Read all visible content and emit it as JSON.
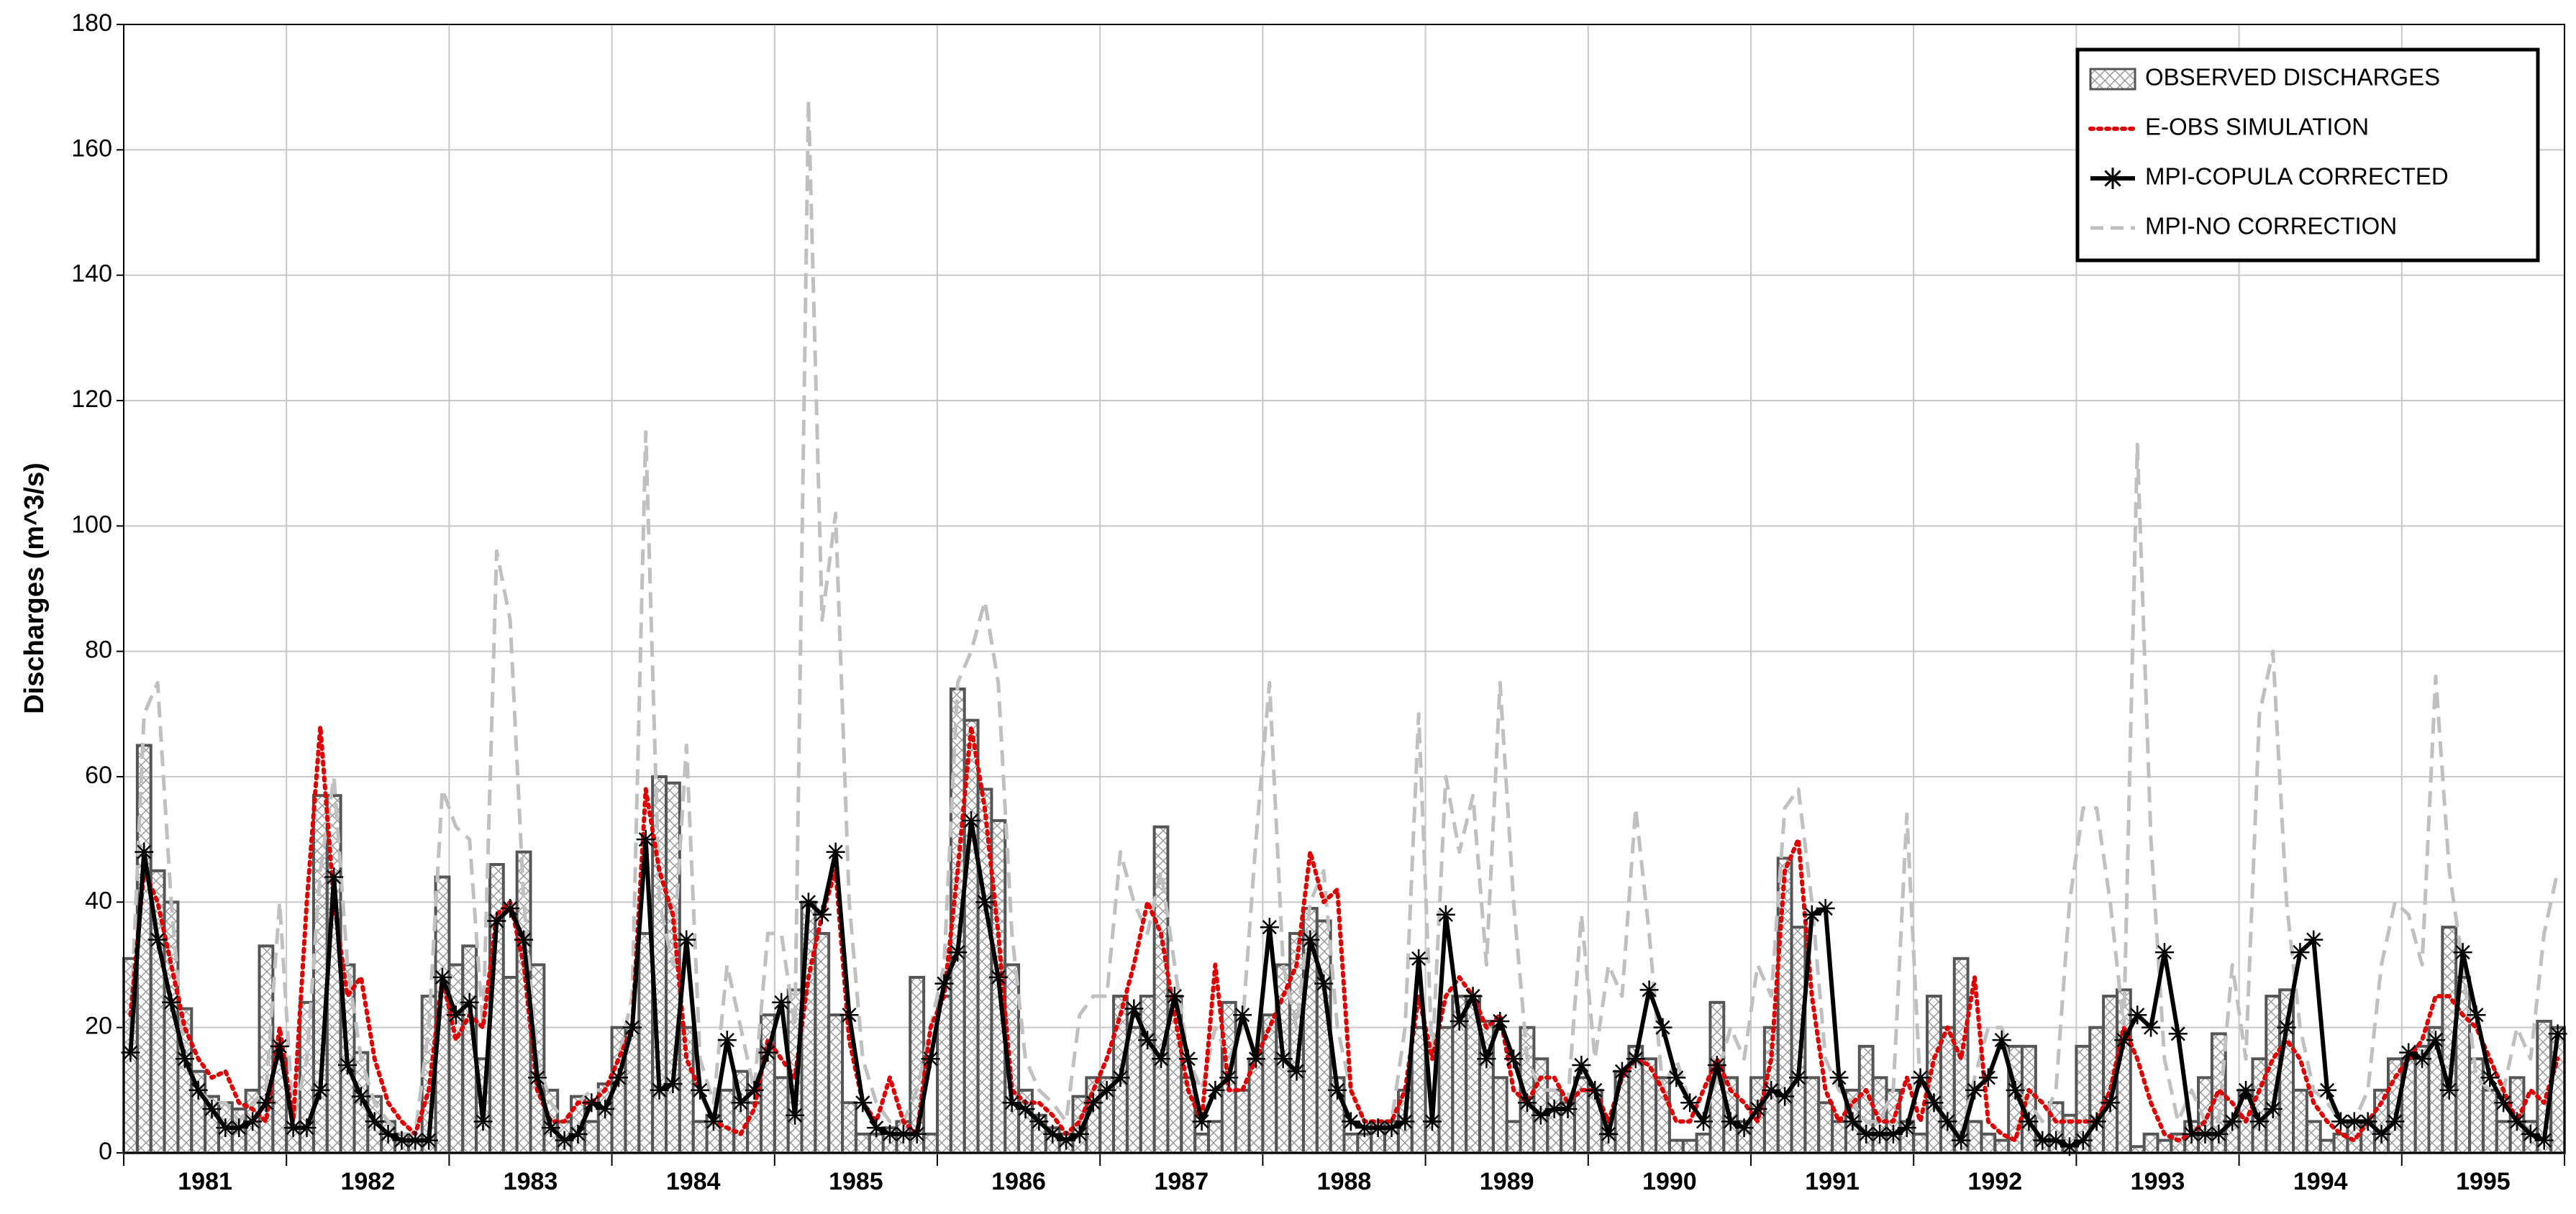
{
  "chart_data": {
    "type": "line",
    "y_label": "Discharges (m^3/s)",
    "categories": [
      "1981",
      "1982",
      "1983",
      "1984",
      "1985",
      "1986",
      "1987",
      "1988",
      "1989",
      "1990",
      "1991",
      "1992",
      "1993",
      "1994",
      "1995"
    ],
    "ylim": [
      0,
      180
    ],
    "yticks": [
      0,
      20,
      40,
      60,
      80,
      100,
      120,
      140,
      160,
      180
    ],
    "grid": true,
    "legend": "upper right",
    "series": [
      {
        "name": "OBSERVED DISCHARGES",
        "color": "#555555",
        "style": "step-hatched",
        "values": [
          [
            31,
            65,
            45,
            40,
            23,
            13,
            9,
            8,
            7,
            10,
            33,
            15
          ],
          [
            4,
            24,
            57,
            57,
            30,
            16,
            9,
            5,
            3,
            2,
            25,
            44
          ],
          [
            30,
            33,
            15,
            46,
            28,
            48,
            30,
            10,
            5,
            9,
            5,
            11
          ],
          [
            20,
            20,
            35,
            60,
            59,
            20,
            5,
            6,
            10,
            13,
            8,
            22
          ],
          [
            12,
            26,
            40,
            35,
            22,
            8,
            3,
            3,
            4,
            5,
            28,
            3
          ],
          [
            25,
            74,
            69,
            58,
            53,
            30,
            10,
            6,
            4,
            3,
            9,
            12
          ],
          [
            12,
            25,
            20,
            25,
            52,
            25,
            12,
            3,
            5,
            24,
            10,
            15
          ],
          [
            22,
            30,
            35,
            39,
            37,
            12,
            3,
            3,
            5,
            5,
            10,
            20
          ],
          [
            5,
            20,
            25,
            25,
            21,
            12,
            5,
            20,
            15,
            10,
            8,
            12
          ],
          [
            10,
            3,
            13,
            17,
            15,
            12,
            2,
            2,
            3,
            24,
            12,
            5
          ],
          [
            12,
            20,
            47,
            36,
            12,
            8,
            5,
            10,
            17,
            12,
            10,
            5
          ],
          [
            3,
            25,
            20,
            31,
            5,
            3,
            2,
            17,
            17,
            2,
            8,
            6
          ],
          [
            17,
            20,
            25,
            26,
            1,
            3,
            2,
            3,
            5,
            12,
            19,
            5
          ],
          [
            10,
            15,
            25,
            26,
            10,
            5,
            2,
            3,
            5,
            5,
            10,
            15
          ],
          [
            15,
            17,
            20,
            36,
            28,
            15,
            10,
            5,
            12,
            5,
            21,
            20
          ]
        ]
      },
      {
        "name": "E-OBS SIMULATION",
        "color": "#e00000",
        "style": "dotted",
        "values": [
          [
            22,
            45,
            40,
            30,
            20,
            15,
            12,
            13,
            8,
            7,
            5,
            20
          ],
          [
            5,
            40,
            68,
            40,
            25,
            28,
            15,
            8,
            5,
            3,
            10,
            28
          ],
          [
            18,
            22,
            20,
            38,
            40,
            30,
            10,
            5,
            5,
            8,
            8,
            10
          ],
          [
            15,
            20,
            58,
            45,
            38,
            15,
            10,
            5,
            4,
            3,
            7,
            18
          ],
          [
            15,
            12,
            28,
            38,
            45,
            18,
            8,
            5,
            12,
            5,
            3,
            20
          ],
          [
            25,
            45,
            68,
            55,
            35,
            10,
            8,
            8,
            6,
            3,
            5,
            10
          ],
          [
            15,
            22,
            30,
            40,
            35,
            22,
            10,
            5,
            30,
            10,
            10,
            15
          ],
          [
            20,
            25,
            30,
            48,
            40,
            42,
            10,
            5,
            5,
            5,
            10,
            25
          ],
          [
            15,
            25,
            28,
            25,
            20,
            22,
            10,
            8,
            12,
            12,
            8,
            10
          ],
          [
            10,
            5,
            12,
            15,
            14,
            10,
            5,
            5,
            10,
            15,
            10,
            8
          ],
          [
            5,
            15,
            45,
            50,
            25,
            10,
            5,
            8,
            10,
            5,
            5,
            12
          ],
          [
            5,
            15,
            20,
            15,
            28,
            5,
            3,
            2,
            10,
            8,
            5,
            5
          ],
          [
            5,
            5,
            10,
            20,
            15,
            8,
            3,
            2,
            3,
            5,
            10,
            8
          ],
          [
            5,
            10,
            15,
            18,
            15,
            8,
            5,
            3,
            2,
            5,
            8,
            12
          ],
          [
            15,
            18,
            25,
            25,
            22,
            20,
            15,
            10,
            5,
            10,
            8,
            15
          ]
        ]
      },
      {
        "name": "MPI-COPULA CORRECTED",
        "color": "#000000",
        "style": "solid-star",
        "values": [
          [
            16,
            48,
            34,
            24,
            15,
            10,
            7,
            4,
            4,
            5,
            8,
            17
          ],
          [
            4,
            4,
            10,
            44,
            14,
            9,
            5,
            3,
            2,
            2,
            2,
            28
          ],
          [
            22,
            24,
            5,
            37,
            39,
            34,
            12,
            4,
            2,
            3,
            8,
            7
          ],
          [
            12,
            20,
            50,
            10,
            11,
            34,
            10,
            5,
            18,
            8,
            10,
            16
          ],
          [
            24,
            6,
            40,
            38,
            48,
            22,
            8,
            4,
            3,
            3,
            3,
            15
          ],
          [
            27,
            32,
            53,
            40,
            28,
            8,
            7,
            5,
            3,
            2,
            3,
            8
          ],
          [
            10,
            12,
            23,
            18,
            15,
            25,
            15,
            5,
            10,
            12,
            22,
            15
          ],
          [
            36,
            15,
            13,
            34,
            27,
            10,
            5,
            4,
            4,
            4,
            5,
            31
          ],
          [
            5,
            38,
            21,
            25,
            15,
            21,
            15,
            8,
            6,
            7,
            7,
            14
          ],
          [
            10,
            3,
            13,
            15,
            26,
            20,
            12,
            8,
            5,
            14,
            5,
            4
          ],
          [
            7,
            10,
            9,
            12,
            38,
            39,
            12,
            5,
            3,
            3,
            3,
            4
          ],
          [
            12,
            8,
            5,
            2,
            10,
            12,
            18,
            10,
            5,
            2,
            2,
            1
          ],
          [
            2,
            5,
            8,
            18,
            22,
            20,
            32,
            19,
            3,
            3,
            3,
            5
          ],
          [
            10,
            5,
            7,
            20,
            32,
            34,
            10,
            5,
            5,
            5,
            3,
            5
          ],
          [
            16,
            15,
            18,
            10,
            32,
            22,
            12,
            8,
            5,
            3,
            2,
            19
          ]
        ]
      },
      {
        "name": "MPI-NO CORRECTION",
        "color": "#c0c0c0",
        "style": "dashed",
        "values": [
          [
            20,
            70,
            75,
            40,
            15,
            10,
            8,
            8,
            5,
            8,
            10,
            40
          ],
          [
            5,
            15,
            45,
            60,
            30,
            15,
            8,
            5,
            3,
            3,
            20,
            58
          ],
          [
            52,
            50,
            20,
            96,
            85,
            40,
            15,
            8,
            5,
            8,
            10,
            10
          ],
          [
            15,
            25,
            115,
            40,
            30,
            65,
            15,
            8,
            30,
            20,
            10,
            35
          ],
          [
            35,
            20,
            168,
            85,
            102,
            40,
            15,
            8,
            5,
            5,
            10,
            20
          ],
          [
            30,
            75,
            80,
            88,
            75,
            35,
            15,
            10,
            8,
            5,
            22,
            25
          ],
          [
            25,
            48,
            40,
            35,
            45,
            30,
            15,
            10,
            20,
            15,
            20,
            50
          ],
          [
            75,
            30,
            20,
            40,
            45,
            20,
            10,
            5,
            5,
            5,
            20,
            70
          ],
          [
            15,
            60,
            48,
            57,
            30,
            75,
            40,
            15,
            10,
            10,
            8,
            38
          ],
          [
            15,
            30,
            25,
            55,
            35,
            10,
            15,
            8,
            5,
            12,
            20,
            15
          ],
          [
            30,
            25,
            55,
            58,
            40,
            15,
            10,
            8,
            5,
            5,
            10,
            54
          ],
          [
            10,
            8,
            5,
            3,
            12,
            20,
            20,
            10,
            8,
            5,
            10,
            40
          ],
          [
            55,
            55,
            40,
            20,
            113,
            50,
            15,
            5,
            10,
            5,
            5,
            30
          ],
          [
            15,
            70,
            80,
            40,
            20,
            10,
            8,
            5,
            5,
            10,
            30,
            40
          ],
          [
            38,
            30,
            76,
            45,
            30,
            12,
            10,
            10,
            20,
            15,
            35,
            45
          ]
        ]
      }
    ]
  }
}
